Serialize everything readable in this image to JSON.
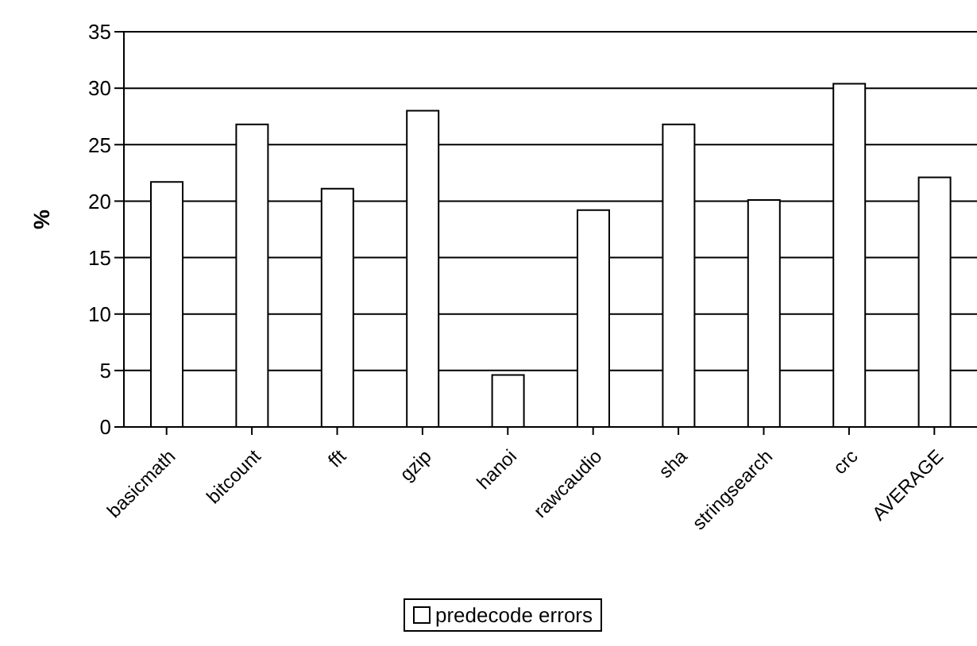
{
  "chart_data": {
    "type": "bar",
    "ylabel": "%",
    "categories": [
      "basicmath",
      "bitcount",
      "fft",
      "gzip",
      "hanoi",
      "rawcaudio",
      "sha",
      "stringsearch",
      "crc",
      "AVERAGE"
    ],
    "series": [
      {
        "name": "predecode errors",
        "color": "#ffffff",
        "values": [
          21.7,
          26.8,
          21.1,
          28,
          4.6,
          19.2,
          26.8,
          20.1,
          30.4,
          22.1
        ]
      }
    ],
    "ylim": [
      0,
      35
    ],
    "yticks": [
      0,
      5,
      10,
      15,
      20,
      25,
      30,
      35
    ],
    "grid": "y",
    "legend": "bottom"
  }
}
